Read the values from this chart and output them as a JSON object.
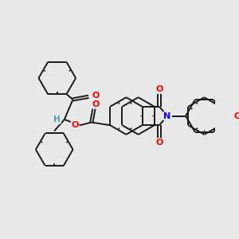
{
  "bg": "#e8e8e8",
  "bond": "#1a1a1a",
  "O": "#ff0000",
  "N": "#0000ff",
  "H": "#4a9e9e",
  "lw": 1.4,
  "r": 0.19,
  "figsize": [
    3.0,
    3.0
  ],
  "dpi": 100
}
